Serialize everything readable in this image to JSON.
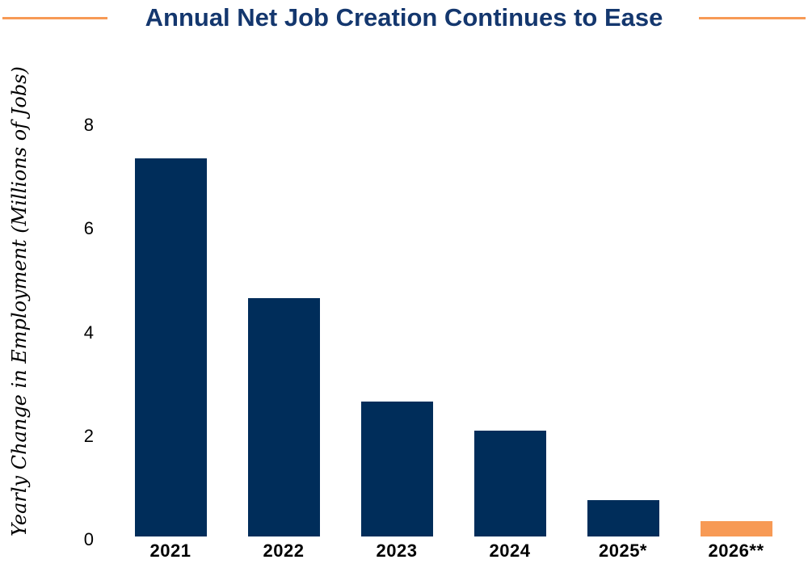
{
  "title": "Annual Net Job Creation Continues to Ease",
  "colors": {
    "navy_bar": "#002d5a",
    "orange_bar": "#f79a55",
    "title_navy": "#14376e",
    "rule_orange": "#f79a55",
    "text_black": "#000000"
  },
  "chart_data": {
    "type": "bar",
    "title": "Annual Net Job Creation Continues to Ease",
    "categories": [
      "2021",
      "2022",
      "2023",
      "2024",
      "2025*",
      "2026**"
    ],
    "values": [
      7.3,
      4.6,
      2.6,
      2.05,
      0.7,
      0.3
    ],
    "bar_colors": [
      "#002d5a",
      "#002d5a",
      "#002d5a",
      "#002d5a",
      "#002d5a",
      "#f79a55"
    ],
    "xlabel": "",
    "ylabel": "Yearly Change in Employment (Millions of Jobs)",
    "ylim": [
      0,
      8.3
    ],
    "yticks": [
      0,
      2,
      4,
      6,
      8
    ],
    "grid": false,
    "legend": "none",
    "notes": "Bars for 2025* and 2026** are marked with asterisks; 2026** bar is orange (forecast highlight)."
  }
}
